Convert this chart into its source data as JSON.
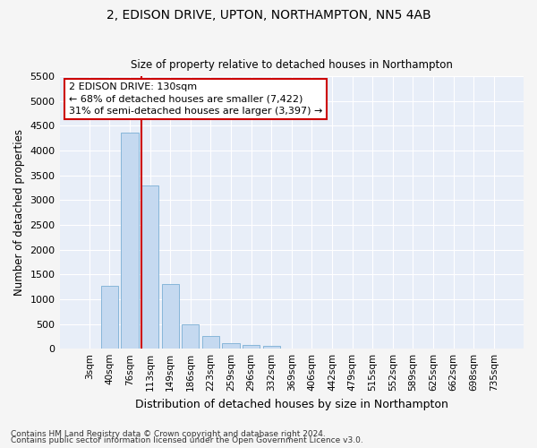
{
  "title1": "2, EDISON DRIVE, UPTON, NORTHAMPTON, NN5 4AB",
  "title2": "Size of property relative to detached houses in Northampton",
  "xlabel": "Distribution of detached houses by size in Northampton",
  "ylabel": "Number of detached properties",
  "categories": [
    "3sqm",
    "40sqm",
    "76sqm",
    "113sqm",
    "149sqm",
    "186sqm",
    "223sqm",
    "259sqm",
    "296sqm",
    "332sqm",
    "369sqm",
    "406sqm",
    "442sqm",
    "479sqm",
    "515sqm",
    "552sqm",
    "589sqm",
    "625sqm",
    "662sqm",
    "698sqm",
    "735sqm"
  ],
  "values": [
    0,
    1270,
    4350,
    3300,
    1300,
    490,
    250,
    110,
    75,
    50,
    0,
    0,
    0,
    0,
    0,
    0,
    0,
    0,
    0,
    0,
    0
  ],
  "bar_color": "#c5d9f0",
  "bar_edge_color": "#7bafd4",
  "vline_index": 3,
  "vline_color": "#cc0000",
  "ylim": [
    0,
    5500
  ],
  "yticks": [
    0,
    500,
    1000,
    1500,
    2000,
    2500,
    3000,
    3500,
    4000,
    4500,
    5000,
    5500
  ],
  "annotation_line1": "2 EDISON DRIVE: 130sqm",
  "annotation_line2": "← 68% of detached houses are smaller (7,422)",
  "annotation_line3": "31% of semi-detached houses are larger (3,397) →",
  "annotation_box_color": "#ffffff",
  "annotation_box_edge_color": "#cc0000",
  "footer1": "Contains HM Land Registry data © Crown copyright and database right 2024.",
  "footer2": "Contains public sector information licensed under the Open Government Licence v3.0.",
  "fig_bg_color": "#f5f5f5",
  "plot_bg_color": "#e8eef8"
}
